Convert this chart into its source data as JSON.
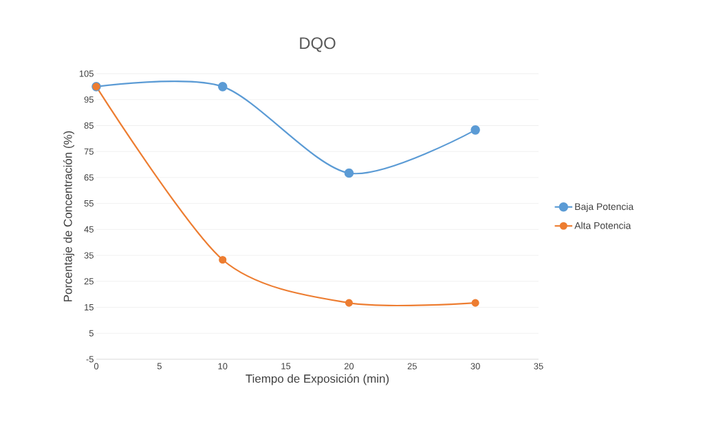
{
  "chart_data": {
    "type": "line",
    "title": "DQO",
    "xlabel": "Tiempo de Exposición (min)",
    "ylabel": "Porcentaje de Concentración (%)",
    "x": [
      0,
      10,
      20,
      30
    ],
    "series": [
      {
        "name": "Baja Potencia",
        "color": "#5b9bd5",
        "values": [
          100,
          100,
          66.7,
          83.3
        ]
      },
      {
        "name": "Alta Potencia",
        "color": "#ed7d31",
        "values": [
          100,
          33.3,
          16.7,
          16.7
        ]
      }
    ],
    "xlim": [
      0,
      35
    ],
    "xticks": [
      0,
      5,
      10,
      15,
      20,
      25,
      30,
      35
    ],
    "ylim": [
      -5,
      105
    ],
    "yticks": [
      -5,
      5,
      15,
      25,
      35,
      45,
      55,
      65,
      75,
      85,
      95,
      105
    ],
    "grid": "y",
    "legend": "right",
    "marker": "circle",
    "line_style": "solid"
  }
}
